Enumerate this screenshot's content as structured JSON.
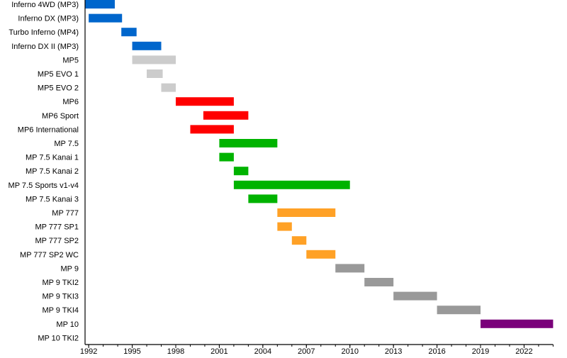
{
  "chart_data": {
    "type": "bar",
    "orientation": "horizontal-timeline",
    "title": "",
    "xlabel": "",
    "ylabel": "",
    "xlim": [
      1991.75,
      2024
    ],
    "x_ticks": [
      1992,
      1995,
      1998,
      2001,
      2004,
      2007,
      2010,
      2013,
      2016,
      2019,
      2022
    ],
    "minor_tick_step": 1,
    "grid": false,
    "legend": "none",
    "colors": {
      "blue": "#0066cc",
      "lightgray": "#cccccc",
      "red": "#ff0000",
      "green": "#00b300",
      "orange": "#ffa126",
      "gray": "#999999",
      "purple": "#7a007a"
    },
    "rows": [
      {
        "label": "Inferno 4WD (MP3)",
        "start": 1991.75,
        "end": 1993.8,
        "color": "#0066cc"
      },
      {
        "label": "Inferno DX (MP3)",
        "start": 1992,
        "end": 1994.3,
        "color": "#0066cc"
      },
      {
        "label": "Turbo Inferno (MP4)",
        "start": 1994.25,
        "end": 1995.3,
        "color": "#0066cc"
      },
      {
        "label": "Inferno DX II (MP3)",
        "start": 1995,
        "end": 1997,
        "color": "#0066cc"
      },
      {
        "label": "MP5",
        "start": 1995,
        "end": 1998,
        "color": "#cccccc"
      },
      {
        "label": "MP5 EVO 1",
        "start": 1996,
        "end": 1997.1,
        "color": "#cccccc"
      },
      {
        "label": "MP5 EVO 2",
        "start": 1997,
        "end": 1998,
        "color": "#cccccc"
      },
      {
        "label": "MP6",
        "start": 1998,
        "end": 2002,
        "color": "#ff0000"
      },
      {
        "label": "MP6 Sport",
        "start": 1999.9,
        "end": 2003,
        "color": "#ff0000"
      },
      {
        "label": "MP6 International",
        "start": 1999,
        "end": 2002,
        "color": "#ff0000"
      },
      {
        "label": "MP 7.5",
        "start": 2001,
        "end": 2005,
        "color": "#00b300"
      },
      {
        "label": "MP 7.5 Kanai 1",
        "start": 2001,
        "end": 2002,
        "color": "#00b300"
      },
      {
        "label": "MP 7.5 Kanai 2",
        "start": 2002,
        "end": 2003,
        "color": "#00b300"
      },
      {
        "label": "MP 7.5 Sports v1-v4",
        "start": 2002,
        "end": 2010,
        "color": "#00b300"
      },
      {
        "label": "MP 7.5 Kanai 3",
        "start": 2003,
        "end": 2005,
        "color": "#00b300"
      },
      {
        "label": "MP 777",
        "start": 2005,
        "end": 2009,
        "color": "#ffa126"
      },
      {
        "label": "MP 777 SP1",
        "start": 2005,
        "end": 2006,
        "color": "#ffa126"
      },
      {
        "label": "MP 777 SP2",
        "start": 2006,
        "end": 2007,
        "color": "#ffa126"
      },
      {
        "label": "MP 777 SP2 WC",
        "start": 2007,
        "end": 2009,
        "color": "#ffa126"
      },
      {
        "label": "MP 9",
        "start": 2009,
        "end": 2011,
        "color": "#999999"
      },
      {
        "label": "MP 9 TKI2",
        "start": 2011,
        "end": 2013,
        "color": "#999999"
      },
      {
        "label": "MP 9 TKI3",
        "start": 2013,
        "end": 2016,
        "color": "#999999"
      },
      {
        "label": "MP 9 TKI4",
        "start": 2016,
        "end": 2019,
        "color": "#999999"
      },
      {
        "label": "MP 10",
        "start": 2019,
        "end": 2024,
        "color": "#7a007a"
      },
      {
        "label": "MP 10 TKI2",
        "start": null,
        "end": null,
        "color": null
      }
    ]
  }
}
